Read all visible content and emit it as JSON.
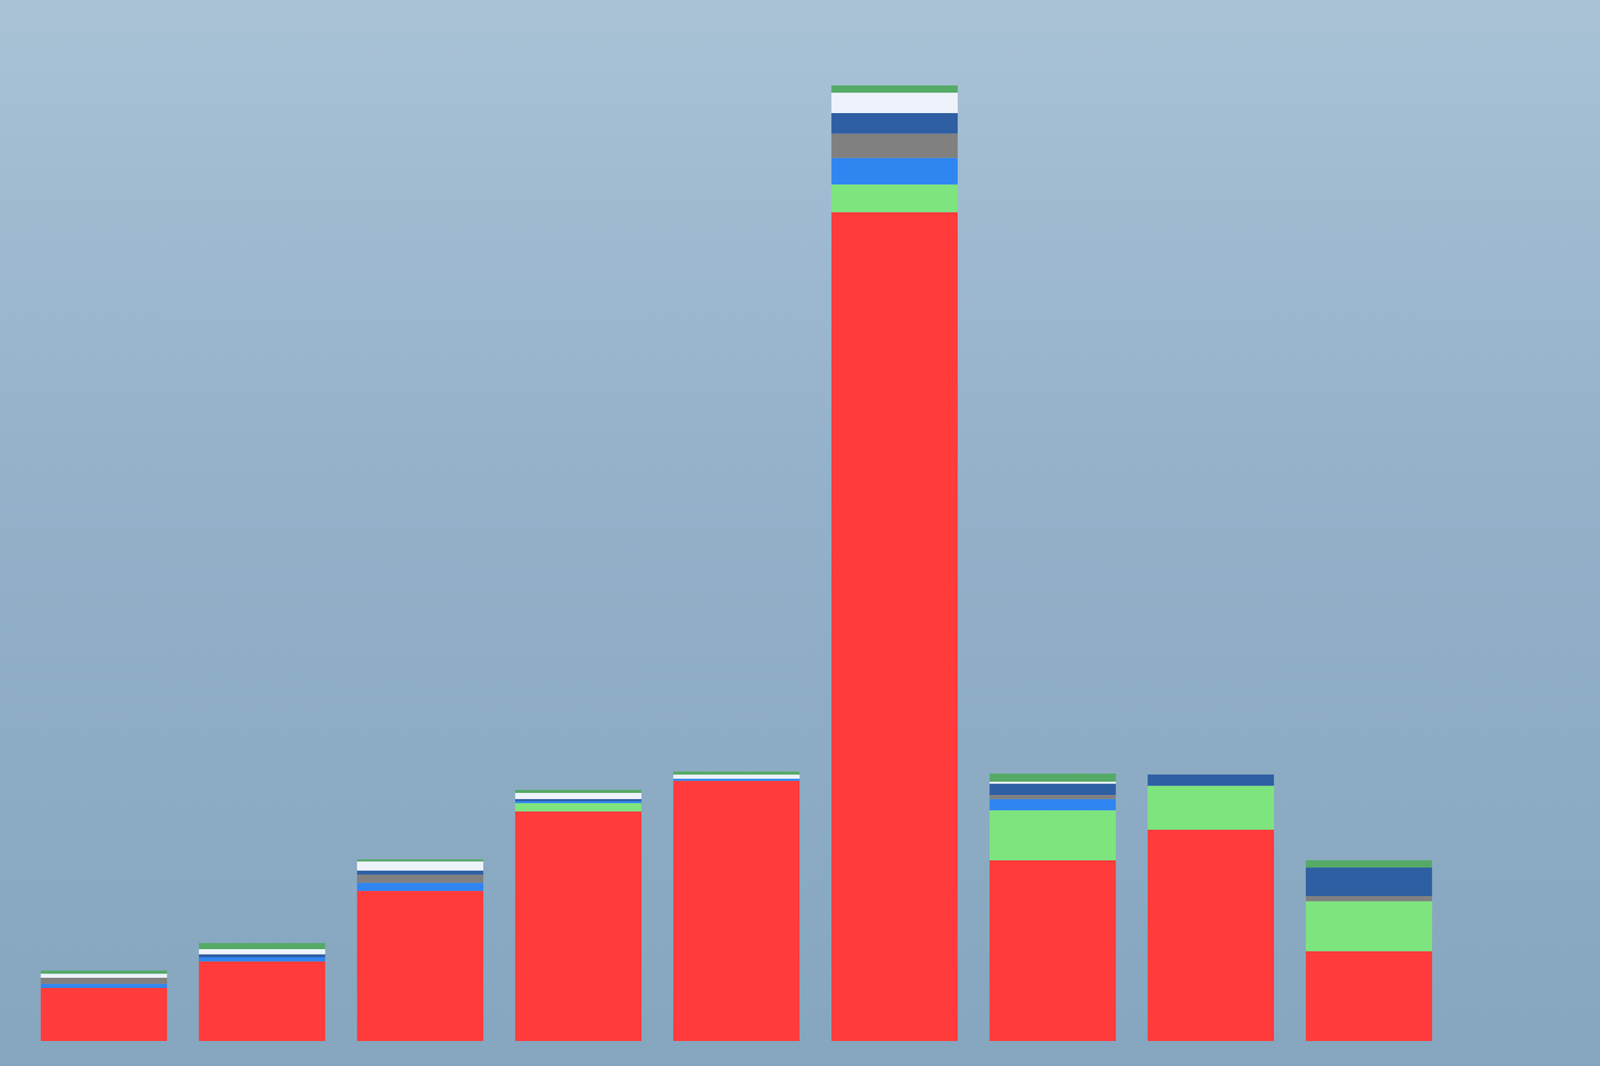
{
  "chart_data": {
    "type": "bar",
    "stacked": true,
    "tick_labels": false,
    "grid": false,
    "categories": [
      null,
      null,
      null,
      null,
      null,
      null,
      null,
      null,
      null
    ],
    "ylim": [
      0,
      950
    ],
    "series": [
      {
        "color": "#ff3b3b",
        "values": [
          52,
          78,
          147,
          225,
          255,
          812,
          177,
          207,
          88
        ]
      },
      {
        "color": "#7ee57e",
        "values": [
          0,
          0,
          0,
          8,
          0,
          27,
          49,
          43,
          49
        ]
      },
      {
        "color": "#2f86f0",
        "values": [
          4,
          4,
          8,
          2,
          2,
          26,
          11,
          0,
          0
        ]
      },
      {
        "color": "#808080",
        "values": [
          6,
          0,
          8,
          0,
          0,
          24,
          4,
          0,
          5
        ]
      },
      {
        "color": "#2e5fa3",
        "values": [
          0,
          3,
          4,
          2,
          0,
          20,
          11,
          11,
          28
        ]
      },
      {
        "color": "#eef3fb",
        "values": [
          4,
          5,
          9,
          6,
          4,
          20,
          2,
          0,
          0
        ]
      },
      {
        "color": "#55aa66",
        "values": [
          3,
          6,
          2,
          3,
          3,
          7,
          8,
          0,
          7
        ]
      }
    ]
  }
}
